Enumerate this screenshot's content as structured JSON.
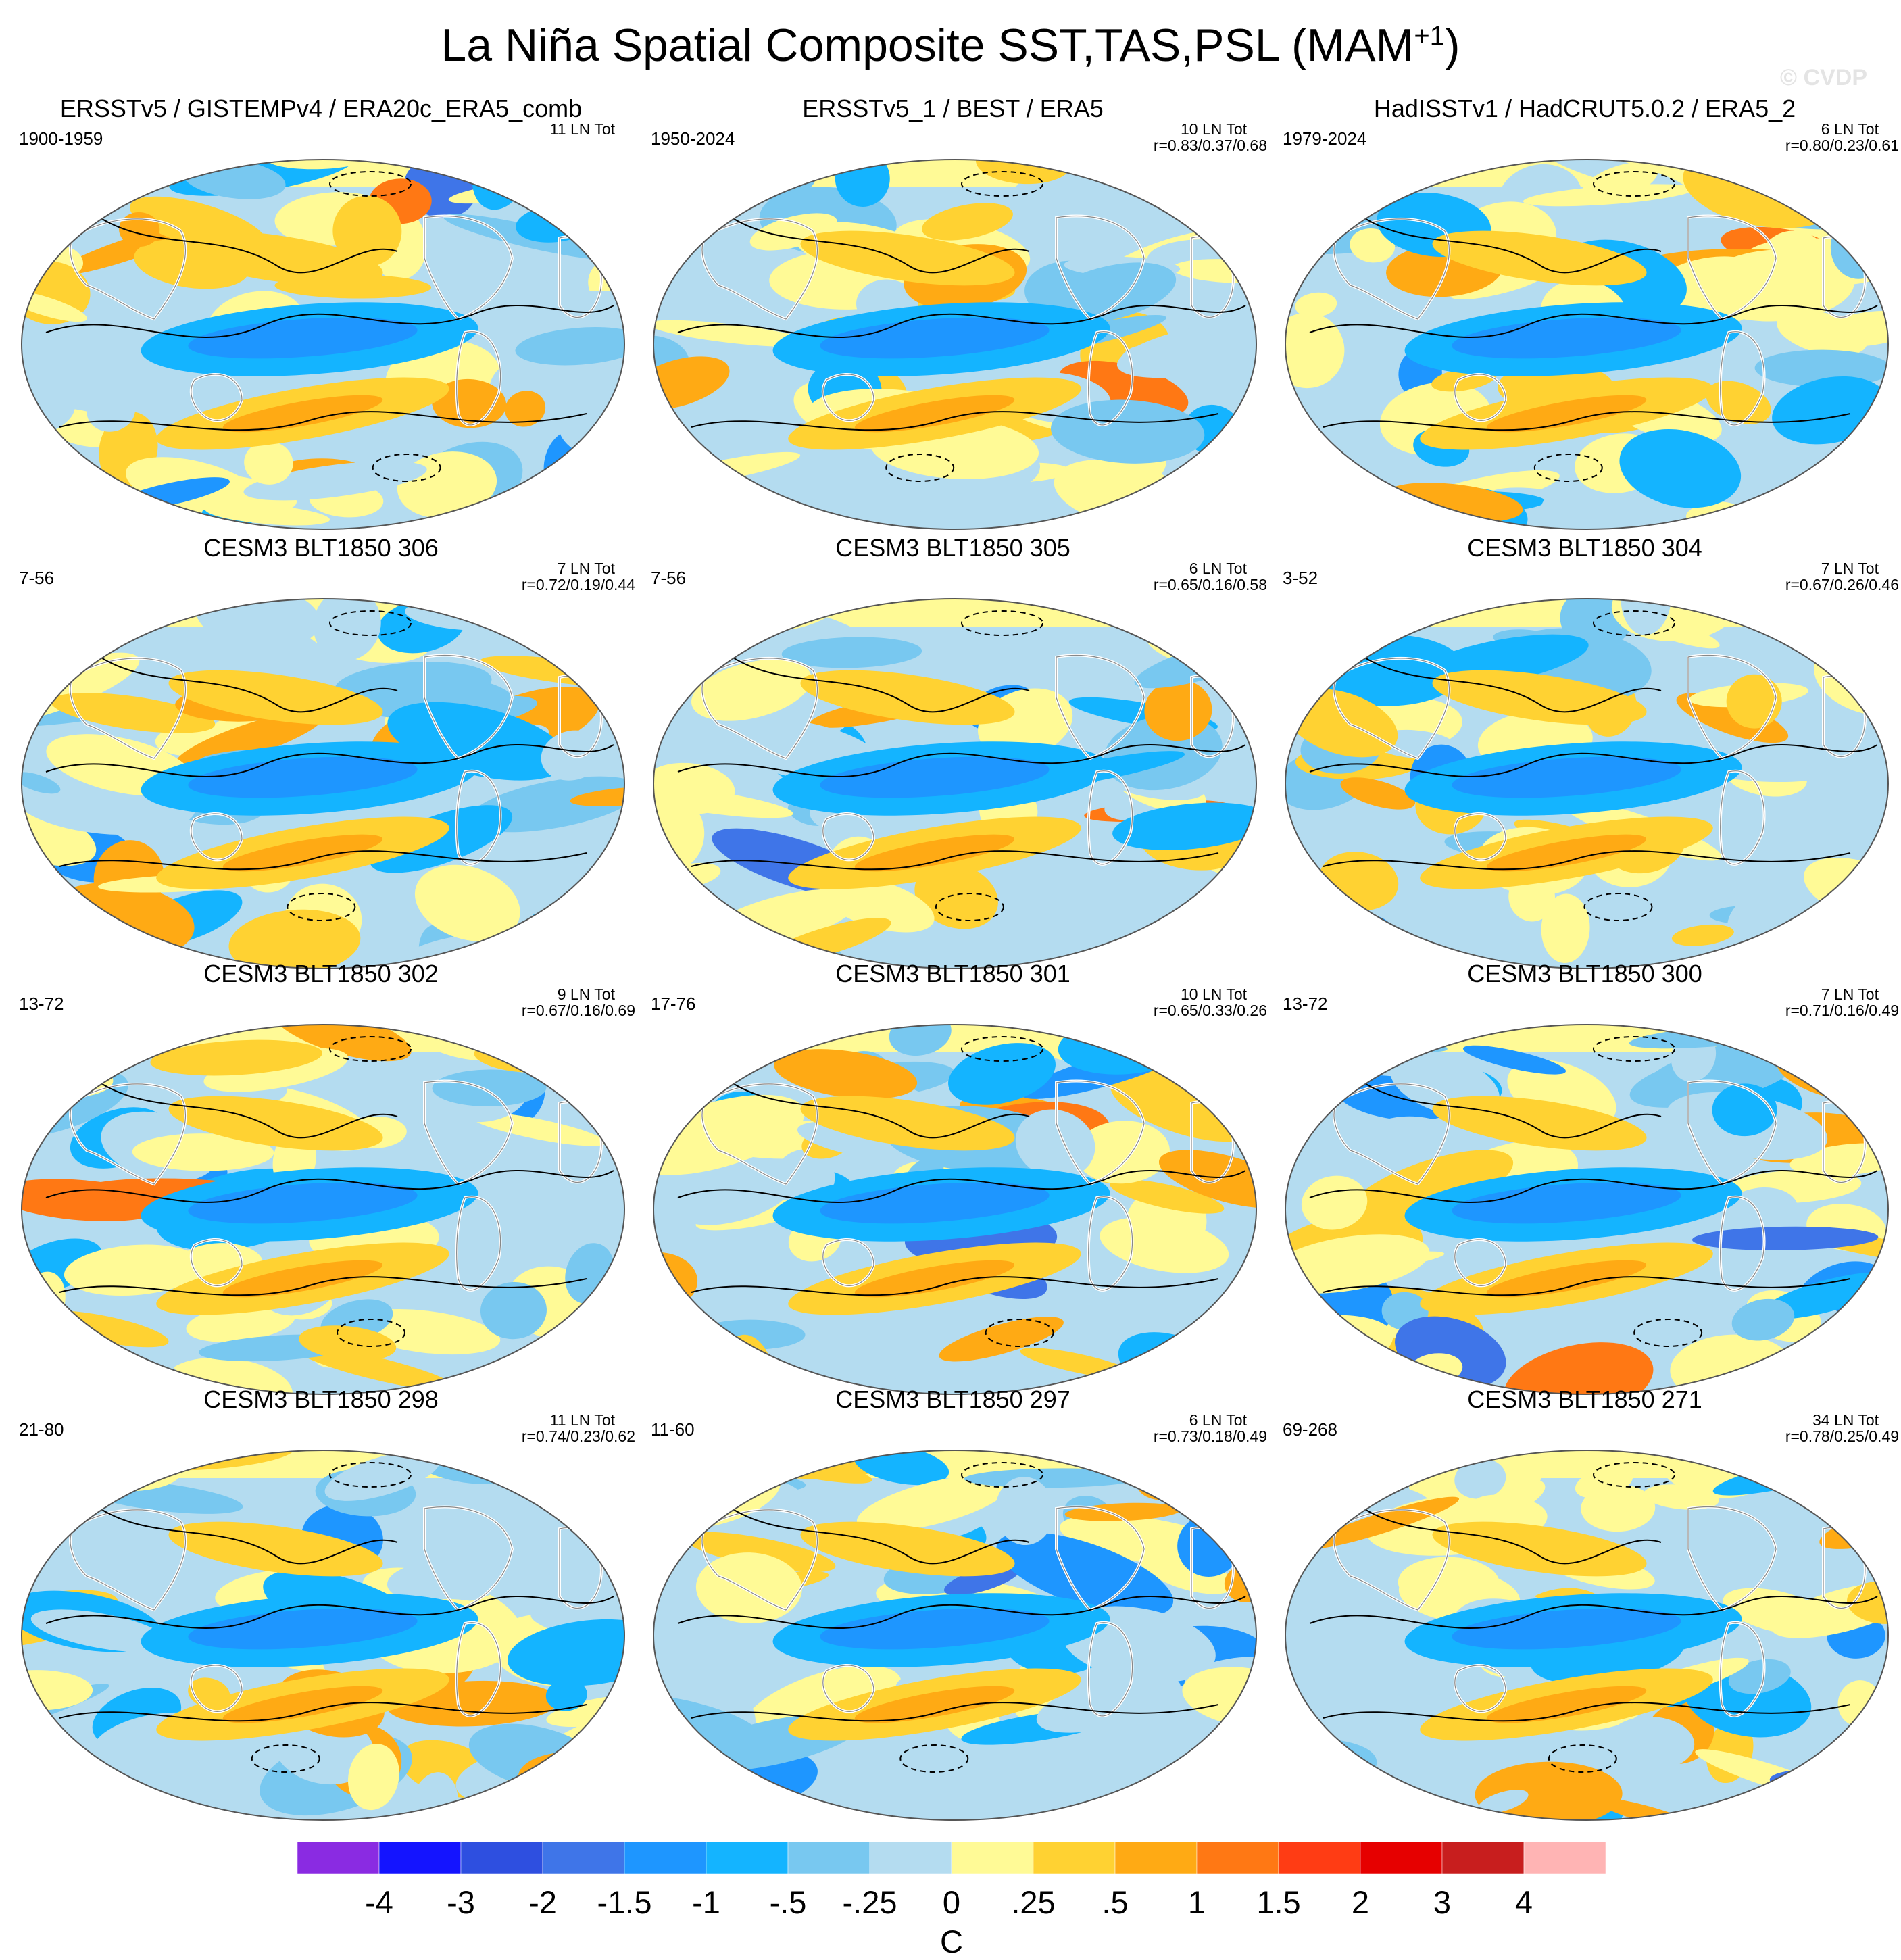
{
  "title": "La Niña Spatial Composite SST,TAS,PSL (MAM",
  "title_superscript": "+1",
  "title_close": ")",
  "watermark": "© CVDP",
  "panels": [
    {
      "title": "ERSSTv5 / GISTEMPv4 / ERA20c_ERA5_comb",
      "years": "1900-1959",
      "tot": "11 LN Tot",
      "r": ""
    },
    {
      "title": "ERSSTv5_1 / BEST / ERA5",
      "years": "1950-2024",
      "tot": "10 LN Tot",
      "r": "r=0.83/0.37/0.68"
    },
    {
      "title": "HadISSTv1 / HadCRUT5.0.2 / ERA5_2",
      "years": "1979-2024",
      "tot": "6 LN Tot",
      "r": "r=0.80/0.23/0.61"
    },
    {
      "title": "CESM3 BLT1850 306",
      "years": "7-56",
      "tot": "7 LN Tot",
      "r": "r=0.72/0.19/0.44"
    },
    {
      "title": "CESM3 BLT1850 305",
      "years": "7-56",
      "tot": "6 LN Tot",
      "r": "r=0.65/0.16/0.58"
    },
    {
      "title": "CESM3 BLT1850 304",
      "years": "3-52",
      "tot": "7 LN Tot",
      "r": "r=0.67/0.26/0.46"
    },
    {
      "title": "CESM3 BLT1850 302",
      "years": "13-72",
      "tot": "9 LN Tot",
      "r": "r=0.67/0.16/0.69"
    },
    {
      "title": "CESM3 BLT1850 301",
      "years": "17-76",
      "tot": "10 LN Tot",
      "r": "r=0.65/0.33/0.26"
    },
    {
      "title": "CESM3 BLT1850 300",
      "years": "13-72",
      "tot": "7 LN Tot",
      "r": "r=0.71/0.16/0.49"
    },
    {
      "title": "CESM3 BLT1850 298",
      "years": "21-80",
      "tot": "11 LN Tot",
      "r": "r=0.74/0.23/0.62"
    },
    {
      "title": "CESM3 BLT1850 297",
      "years": "11-60",
      "tot": "6 LN Tot",
      "r": "r=0.73/0.18/0.49"
    },
    {
      "title": "CESM3 BLT1850 271",
      "years": "69-268",
      "tot": "34 LN Tot",
      "r": "r=0.78/0.25/0.49"
    }
  ],
  "colorbar": {
    "colors": [
      "#8a2be2",
      "#1414ff",
      "#2e4fe0",
      "#3f75e8",
      "#1e96ff",
      "#14b4ff",
      "#78c8f0",
      "#b4dcf0",
      "#fffa96",
      "#ffd232",
      "#ffaa14",
      "#ff7814",
      "#ff3c14",
      "#e60000",
      "#c81e1e",
      "#ffb4b4"
    ],
    "labels": [
      "-4",
      "-3",
      "-2",
      "-1.5",
      "-1",
      "-.5",
      "-.25",
      "0",
      ".25",
      ".5",
      "1",
      "1.5",
      "2",
      "3",
      "4"
    ],
    "unit": "C"
  }
}
